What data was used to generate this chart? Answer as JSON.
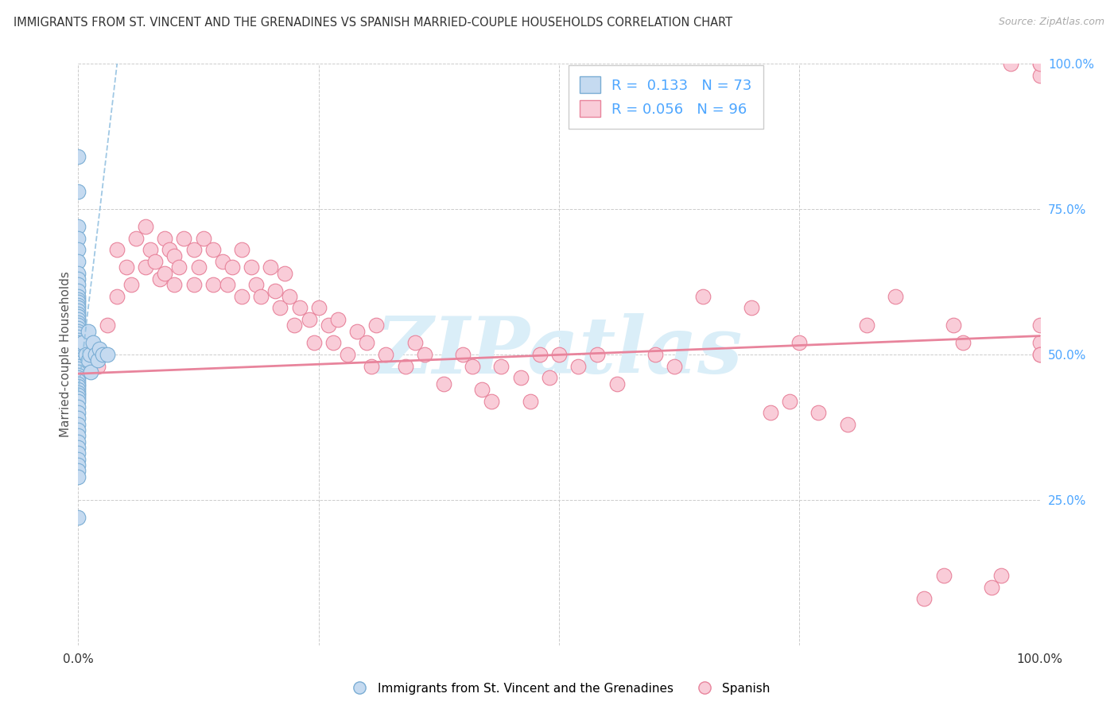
{
  "title": "IMMIGRANTS FROM ST. VINCENT AND THE GRENADINES VS SPANISH MARRIED-COUPLE HOUSEHOLDS CORRELATION CHART",
  "source": "Source: ZipAtlas.com",
  "ylabel": "Married-couple Households",
  "blue_R": 0.133,
  "blue_N": 73,
  "pink_R": 0.056,
  "pink_N": 96,
  "blue_fill": "#c5daf0",
  "blue_edge": "#7aadd4",
  "pink_fill": "#f9ccd8",
  "pink_edge": "#e8849c",
  "blue_trend_color": "#90bfe0",
  "pink_trend_color": "#e8849c",
  "watermark_text": "ZIPatlas",
  "watermark_color": "#daeef8",
  "grid_color": "#cccccc",
  "title_color": "#333333",
  "source_color": "#aaaaaa",
  "tick_color_x": "#333333",
  "tick_color_right": "#4da6ff",
  "legend_label_color": "#4da6ff",
  "axis_label_color": "#555555",
  "xlim": [
    0,
    1
  ],
  "ylim": [
    0,
    1
  ],
  "marker_size": 180,
  "blue_trend_slope": 14.0,
  "blue_trend_intercept": 0.435,
  "blue_trend_xmin": 0.0,
  "blue_trend_xmax": 0.044,
  "pink_trend_slope": 0.065,
  "pink_trend_intercept": 0.467,
  "pink_trend_xmin": 0.0,
  "pink_trend_xmax": 1.0,
  "blue_x": [
    0.0,
    0.0,
    0.0,
    0.0,
    0.0,
    0.0,
    0.0,
    0.0,
    0.0,
    0.0,
    0.0,
    0.0,
    0.0,
    0.0,
    0.0,
    0.0,
    0.0,
    0.0,
    0.0,
    0.0,
    0.0,
    0.0,
    0.0,
    0.0,
    0.0,
    0.0,
    0.0,
    0.0,
    0.0,
    0.0,
    0.0,
    0.0,
    0.0,
    0.0,
    0.0,
    0.0,
    0.0,
    0.0,
    0.0,
    0.0,
    0.0,
    0.0,
    0.0,
    0.0,
    0.0,
    0.0,
    0.0,
    0.0,
    0.0,
    0.0,
    0.0,
    0.0,
    0.0,
    0.0,
    0.0,
    0.0,
    0.0,
    0.0,
    0.0,
    0.0,
    0.0,
    0.005,
    0.008,
    0.01,
    0.01,
    0.012,
    0.013,
    0.015,
    0.018,
    0.02,
    0.022,
    0.025,
    0.03
  ],
  "blue_y": [
    0.84,
    0.78,
    0.72,
    0.7,
    0.68,
    0.66,
    0.64,
    0.63,
    0.62,
    0.61,
    0.6,
    0.595,
    0.59,
    0.585,
    0.58,
    0.575,
    0.57,
    0.565,
    0.56,
    0.555,
    0.55,
    0.545,
    0.54,
    0.535,
    0.53,
    0.525,
    0.52,
    0.515,
    0.51,
    0.505,
    0.5,
    0.495,
    0.49,
    0.485,
    0.48,
    0.475,
    0.47,
    0.465,
    0.46,
    0.455,
    0.45,
    0.445,
    0.44,
    0.435,
    0.43,
    0.425,
    0.42,
    0.41,
    0.4,
    0.39,
    0.38,
    0.37,
    0.36,
    0.35,
    0.34,
    0.33,
    0.32,
    0.31,
    0.3,
    0.29,
    0.22,
    0.52,
    0.5,
    0.54,
    0.49,
    0.5,
    0.47,
    0.52,
    0.5,
    0.49,
    0.51,
    0.5,
    0.5
  ],
  "pink_x": [
    0.0,
    0.01,
    0.02,
    0.03,
    0.04,
    0.04,
    0.05,
    0.055,
    0.06,
    0.07,
    0.07,
    0.075,
    0.08,
    0.085,
    0.09,
    0.09,
    0.095,
    0.1,
    0.1,
    0.105,
    0.11,
    0.12,
    0.12,
    0.125,
    0.13,
    0.14,
    0.14,
    0.15,
    0.155,
    0.16,
    0.17,
    0.17,
    0.18,
    0.185,
    0.19,
    0.2,
    0.205,
    0.21,
    0.215,
    0.22,
    0.225,
    0.23,
    0.24,
    0.245,
    0.25,
    0.26,
    0.265,
    0.27,
    0.28,
    0.29,
    0.3,
    0.305,
    0.31,
    0.32,
    0.34,
    0.35,
    0.36,
    0.38,
    0.4,
    0.41,
    0.42,
    0.43,
    0.44,
    0.46,
    0.47,
    0.48,
    0.49,
    0.5,
    0.52,
    0.54,
    0.56,
    0.6,
    0.62,
    0.65,
    0.7,
    0.72,
    0.74,
    0.75,
    0.77,
    0.8,
    0.82,
    0.85,
    0.88,
    0.9,
    0.91,
    0.92,
    0.95,
    0.96,
    0.97,
    1.0,
    1.0,
    1.0,
    1.0,
    1.0,
    1.0,
    1.0
  ],
  "pink_y": [
    0.5,
    0.5,
    0.48,
    0.55,
    0.68,
    0.6,
    0.65,
    0.62,
    0.7,
    0.72,
    0.65,
    0.68,
    0.66,
    0.63,
    0.7,
    0.64,
    0.68,
    0.67,
    0.62,
    0.65,
    0.7,
    0.68,
    0.62,
    0.65,
    0.7,
    0.68,
    0.62,
    0.66,
    0.62,
    0.65,
    0.68,
    0.6,
    0.65,
    0.62,
    0.6,
    0.65,
    0.61,
    0.58,
    0.64,
    0.6,
    0.55,
    0.58,
    0.56,
    0.52,
    0.58,
    0.55,
    0.52,
    0.56,
    0.5,
    0.54,
    0.52,
    0.48,
    0.55,
    0.5,
    0.48,
    0.52,
    0.5,
    0.45,
    0.5,
    0.48,
    0.44,
    0.42,
    0.48,
    0.46,
    0.42,
    0.5,
    0.46,
    0.5,
    0.48,
    0.5,
    0.45,
    0.5,
    0.48,
    0.6,
    0.58,
    0.4,
    0.42,
    0.52,
    0.4,
    0.38,
    0.55,
    0.6,
    0.08,
    0.12,
    0.55,
    0.52,
    0.1,
    0.12,
    1.0,
    0.55,
    0.52,
    0.5,
    1.0,
    0.98,
    1.0,
    0.5
  ]
}
